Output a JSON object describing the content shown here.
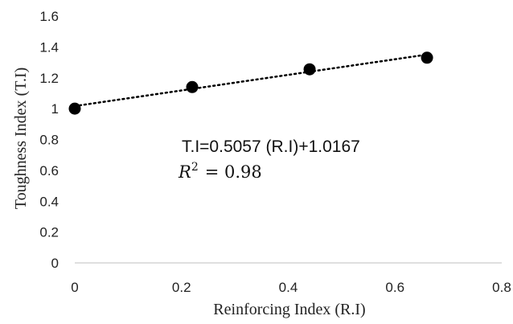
{
  "chart_data": {
    "type": "scatter",
    "title": "",
    "xlabel": "Reinforcing Index (R.I)",
    "ylabel": "Toughness Index (T.I)",
    "xlim": [
      0,
      0.8
    ],
    "ylim": [
      0,
      1.6
    ],
    "x_ticks": [
      "0",
      "0.2",
      "0.4",
      "0.6",
      "0.8"
    ],
    "y_ticks": [
      "0",
      "0.2",
      "0.4",
      "0.6",
      "0.8",
      "1",
      "1.2",
      "1.4",
      "1.6"
    ],
    "grid": false,
    "legend": "none",
    "series": [
      {
        "x": [
          0,
          0.22,
          0.44,
          0.66
        ],
        "y": [
          1.0,
          1.14,
          1.255,
          1.33
        ],
        "color": "#000000"
      }
    ],
    "trendline": {
      "type": "linear",
      "style": "dotted",
      "slope": 0.5057,
      "intercept": 1.0167,
      "x_range": [
        0,
        0.66
      ],
      "equation_label": "T.I=0.5057 (R.I)+1.0167",
      "r2_label": "R",
      "r2_exponent": "2",
      "r2_value": "= 0.98"
    }
  }
}
